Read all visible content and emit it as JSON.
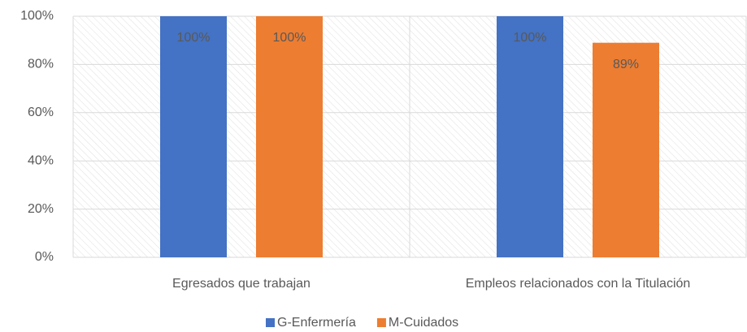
{
  "chart_data": {
    "type": "bar",
    "categories": [
      "Egresados que trabajan",
      "Empleos relacionados con la Titulación"
    ],
    "series": [
      {
        "name": "G-Enfermería",
        "color": "#4472c4",
        "values": [
          100,
          100
        ],
        "value_labels": [
          "100%",
          "100%"
        ]
      },
      {
        "name": "M-Cuidados",
        "color": "#ed7d31",
        "values": [
          100,
          89
        ],
        "value_labels": [
          "100%",
          "89%"
        ]
      }
    ],
    "ylim": [
      0,
      100
    ],
    "yticks": [
      {
        "value": 0,
        "label": "0%"
      },
      {
        "value": 20,
        "label": "20%"
      },
      {
        "value": 40,
        "label": "40%"
      },
      {
        "value": 60,
        "label": "60%"
      },
      {
        "value": 80,
        "label": "80%"
      },
      {
        "value": 100,
        "label": "100%"
      }
    ],
    "grid": true,
    "legend": "bottom"
  }
}
